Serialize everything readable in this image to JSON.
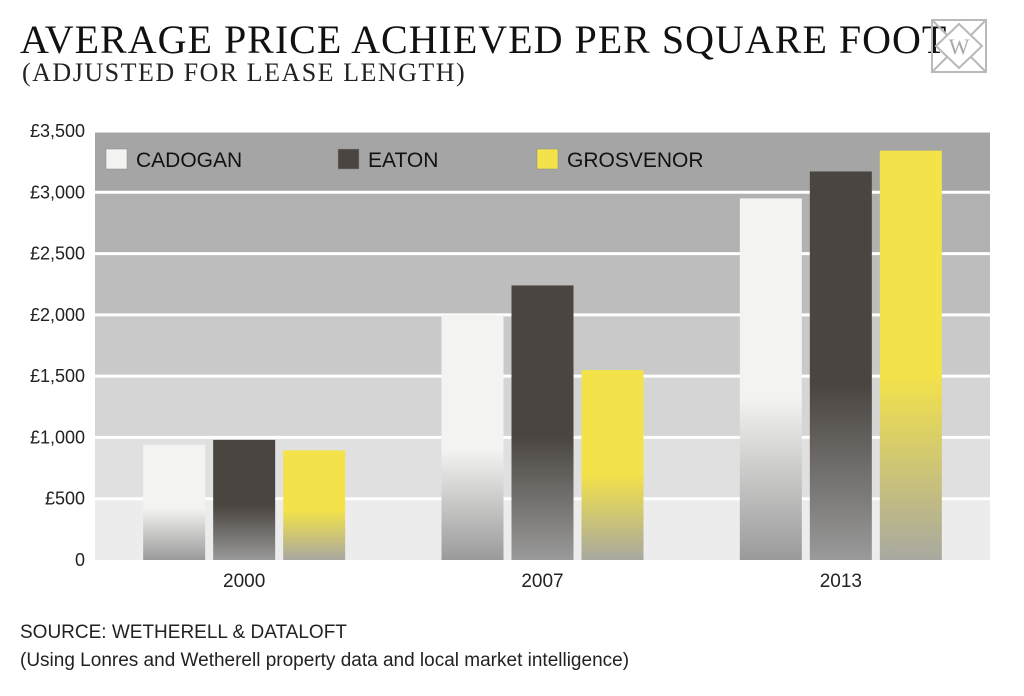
{
  "header": {
    "title": "AVERAGE PRICE ACHIEVED PER SQUARE FOOT",
    "subtitle": "(ADJUSTED FOR LEASE LENGTH)",
    "logo_letter": "W"
  },
  "footer": {
    "source": "SOURCE: WETHERELL & DATALOFT",
    "note": "(Using Lonres and Wetherell property data and local market intelligence)"
  },
  "chart_data": {
    "type": "bar",
    "title": "AVERAGE PRICE ACHIEVED PER SQUARE FOOT",
    "subtitle": "(ADJUSTED FOR LEASE LENGTH)",
    "categories": [
      "2000",
      "2007",
      "2013"
    ],
    "series": [
      {
        "name": "CADOGAN",
        "values": [
          940,
          2000,
          2950
        ],
        "color": "#f3f3f1",
        "shade": "#9a9a9a"
      },
      {
        "name": "EATON",
        "values": [
          980,
          2240,
          3170
        ],
        "color": "#4a4540",
        "shade": "#9a9a9a"
      },
      {
        "name": "GROSVENOR",
        "values": [
          895,
          1550,
          3340
        ],
        "color": "#f3e24a",
        "shade": "#a8a8a0"
      }
    ],
    "yticks": [
      "0",
      "£500",
      "£1,000",
      "£1,500",
      "£2,000",
      "£2,500",
      "£3,000",
      "£3,500"
    ],
    "ylim": [
      0,
      3500
    ],
    "xlabel": "",
    "ylabel": "",
    "grid": true,
    "legend_position": "top-left",
    "band_colors": [
      "#ececec",
      "#e0e0e0",
      "#d5d5d5",
      "#c9c9c9",
      "#bdbdbd",
      "#b1b1b1",
      "#a5a5a5"
    ]
  }
}
